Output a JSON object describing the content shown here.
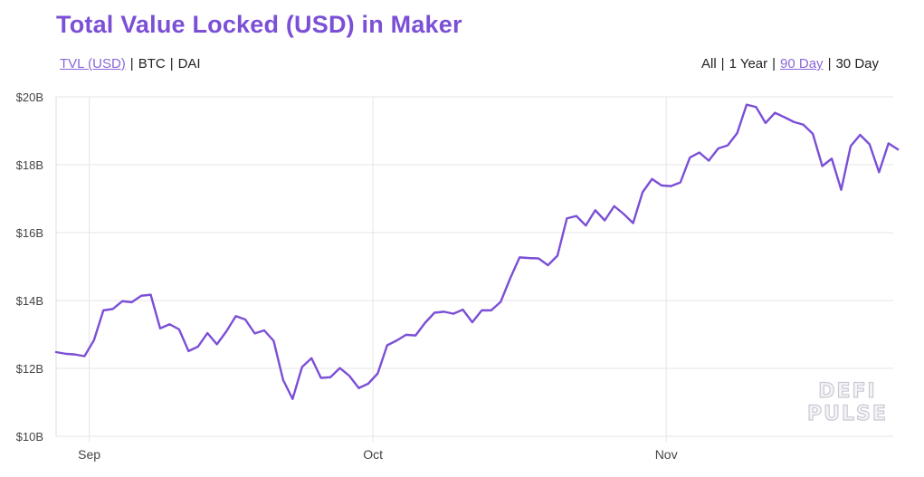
{
  "header": {
    "title": "Total Value Locked (USD) in Maker"
  },
  "metric_tabs": [
    {
      "label": "TVL (USD)",
      "active": true
    },
    {
      "label": "BTC",
      "active": false
    },
    {
      "label": "DAI",
      "active": false
    }
  ],
  "range_tabs": [
    {
      "label": "All",
      "active": false
    },
    {
      "label": "1 Year",
      "active": false
    },
    {
      "label": "90 Day",
      "active": true
    },
    {
      "label": "30 Day",
      "active": false
    }
  ],
  "separator": "|",
  "watermark": {
    "line1": "DEFI",
    "line2": "PULSE"
  },
  "colors": {
    "title": "#7b4fd6",
    "line": "#7b4fd6",
    "active_tab": "#8a67d8",
    "grid": "#e6e6e6"
  },
  "chart_data": {
    "type": "line",
    "title": "Total Value Locked (USD) in Maker",
    "xlabel": "",
    "ylabel": "",
    "grid": true,
    "x_ticks": [
      {
        "label": "Sep",
        "day": 3.5
      },
      {
        "label": "Oct",
        "day": 33.5
      },
      {
        "label": "Nov",
        "day": 64.5
      }
    ],
    "y_ticks": [
      {
        "label": "$10B",
        "value": 10
      },
      {
        "label": "$12B",
        "value": 12
      },
      {
        "label": "$14B",
        "value": 14
      },
      {
        "label": "$16B",
        "value": 16
      },
      {
        "label": "$18B",
        "value": 18
      },
      {
        "label": "$20B",
        "value": 20
      }
    ],
    "ylim": [
      10,
      20
    ],
    "xlim": [
      0,
      88.5
    ],
    "series": [
      {
        "values": [
          12.48,
          12.43,
          12.41,
          12.36,
          12.83,
          13.71,
          13.75,
          13.98,
          13.95,
          14.14,
          14.17,
          13.18,
          13.3,
          13.15,
          12.51,
          12.64,
          13.04,
          12.71,
          13.09,
          13.54,
          13.44,
          13.03,
          13.12,
          12.81,
          11.66,
          11.1,
          12.04,
          12.3,
          11.72,
          11.74,
          12.01,
          11.78,
          11.42,
          11.55,
          11.85,
          12.68,
          12.82,
          12.99,
          12.97,
          13.34,
          13.64,
          13.67,
          13.61,
          13.73,
          13.36,
          13.71,
          13.71,
          13.96,
          14.65,
          15.27,
          15.25,
          15.24,
          15.04,
          15.32,
          16.42,
          16.49,
          16.21,
          16.66,
          16.36,
          16.78,
          16.55,
          16.28,
          17.19,
          17.58,
          17.39,
          17.37,
          17.48,
          18.21,
          18.36,
          18.12,
          18.48,
          18.57,
          18.93,
          19.77,
          19.7,
          19.23,
          19.53,
          19.4,
          19.26,
          19.18,
          18.91,
          17.96,
          18.18,
          17.26,
          18.55,
          18.88,
          18.6,
          17.78,
          18.63,
          18.45
        ]
      }
    ]
  }
}
